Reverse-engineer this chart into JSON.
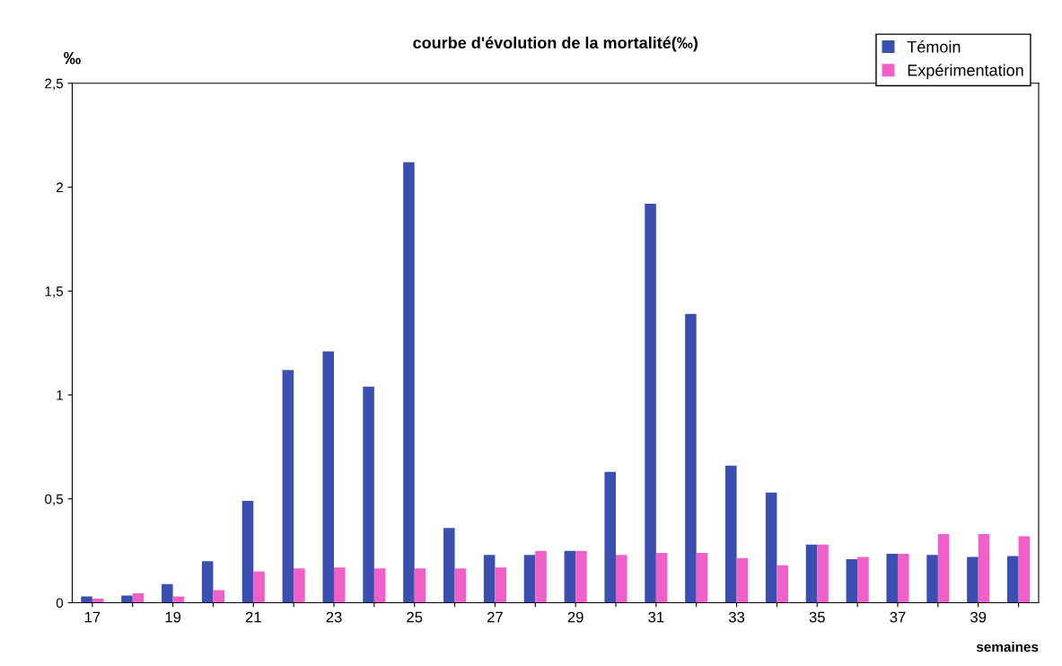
{
  "chart_data": {
    "type": "bar",
    "title": "courbe d'évolution de la mortalité(‰)",
    "ylabel": "‰",
    "xlabel": "semaines",
    "categories": [
      "17",
      null,
      "19",
      null,
      "21",
      null,
      "23",
      null,
      "25",
      null,
      "27",
      null,
      "29",
      null,
      "31",
      null,
      "33",
      null,
      "35",
      null,
      "37",
      null,
      "39",
      null
    ],
    "series": [
      {
        "name": "Témoin",
        "color": "#3a4fb0",
        "values": [
          0.03,
          0.035,
          0.09,
          0.2,
          0.49,
          1.12,
          1.21,
          1.04,
          2.12,
          0.36,
          0.23,
          0.23,
          0.25,
          0.63,
          1.92,
          1.39,
          0.66,
          0.53,
          0.28,
          0.21,
          0.235,
          0.23,
          0.22,
          0.225
        ]
      },
      {
        "name": "Expérimentation",
        "color": "#f060c8",
        "values": [
          0.02,
          0.045,
          0.03,
          0.06,
          0.15,
          0.165,
          0.17,
          0.165,
          0.165,
          0.165,
          0.17,
          0.25,
          0.25,
          0.23,
          0.24,
          0.24,
          0.215,
          0.18,
          0.28,
          0.22,
          0.235,
          0.33,
          0.33,
          0.32
        ]
      }
    ],
    "ylim": [
      0,
      2.5
    ],
    "yticks": [
      {
        "value": 0,
        "label": "0"
      },
      {
        "value": 0.5,
        "label": "0,5"
      },
      {
        "value": 1,
        "label": "1"
      },
      {
        "value": 1.5,
        "label": "1,5"
      },
      {
        "value": 2,
        "label": "2"
      },
      {
        "value": 2.5,
        "label": "2,5"
      }
    ],
    "grid": false,
    "legend": "top right"
  }
}
